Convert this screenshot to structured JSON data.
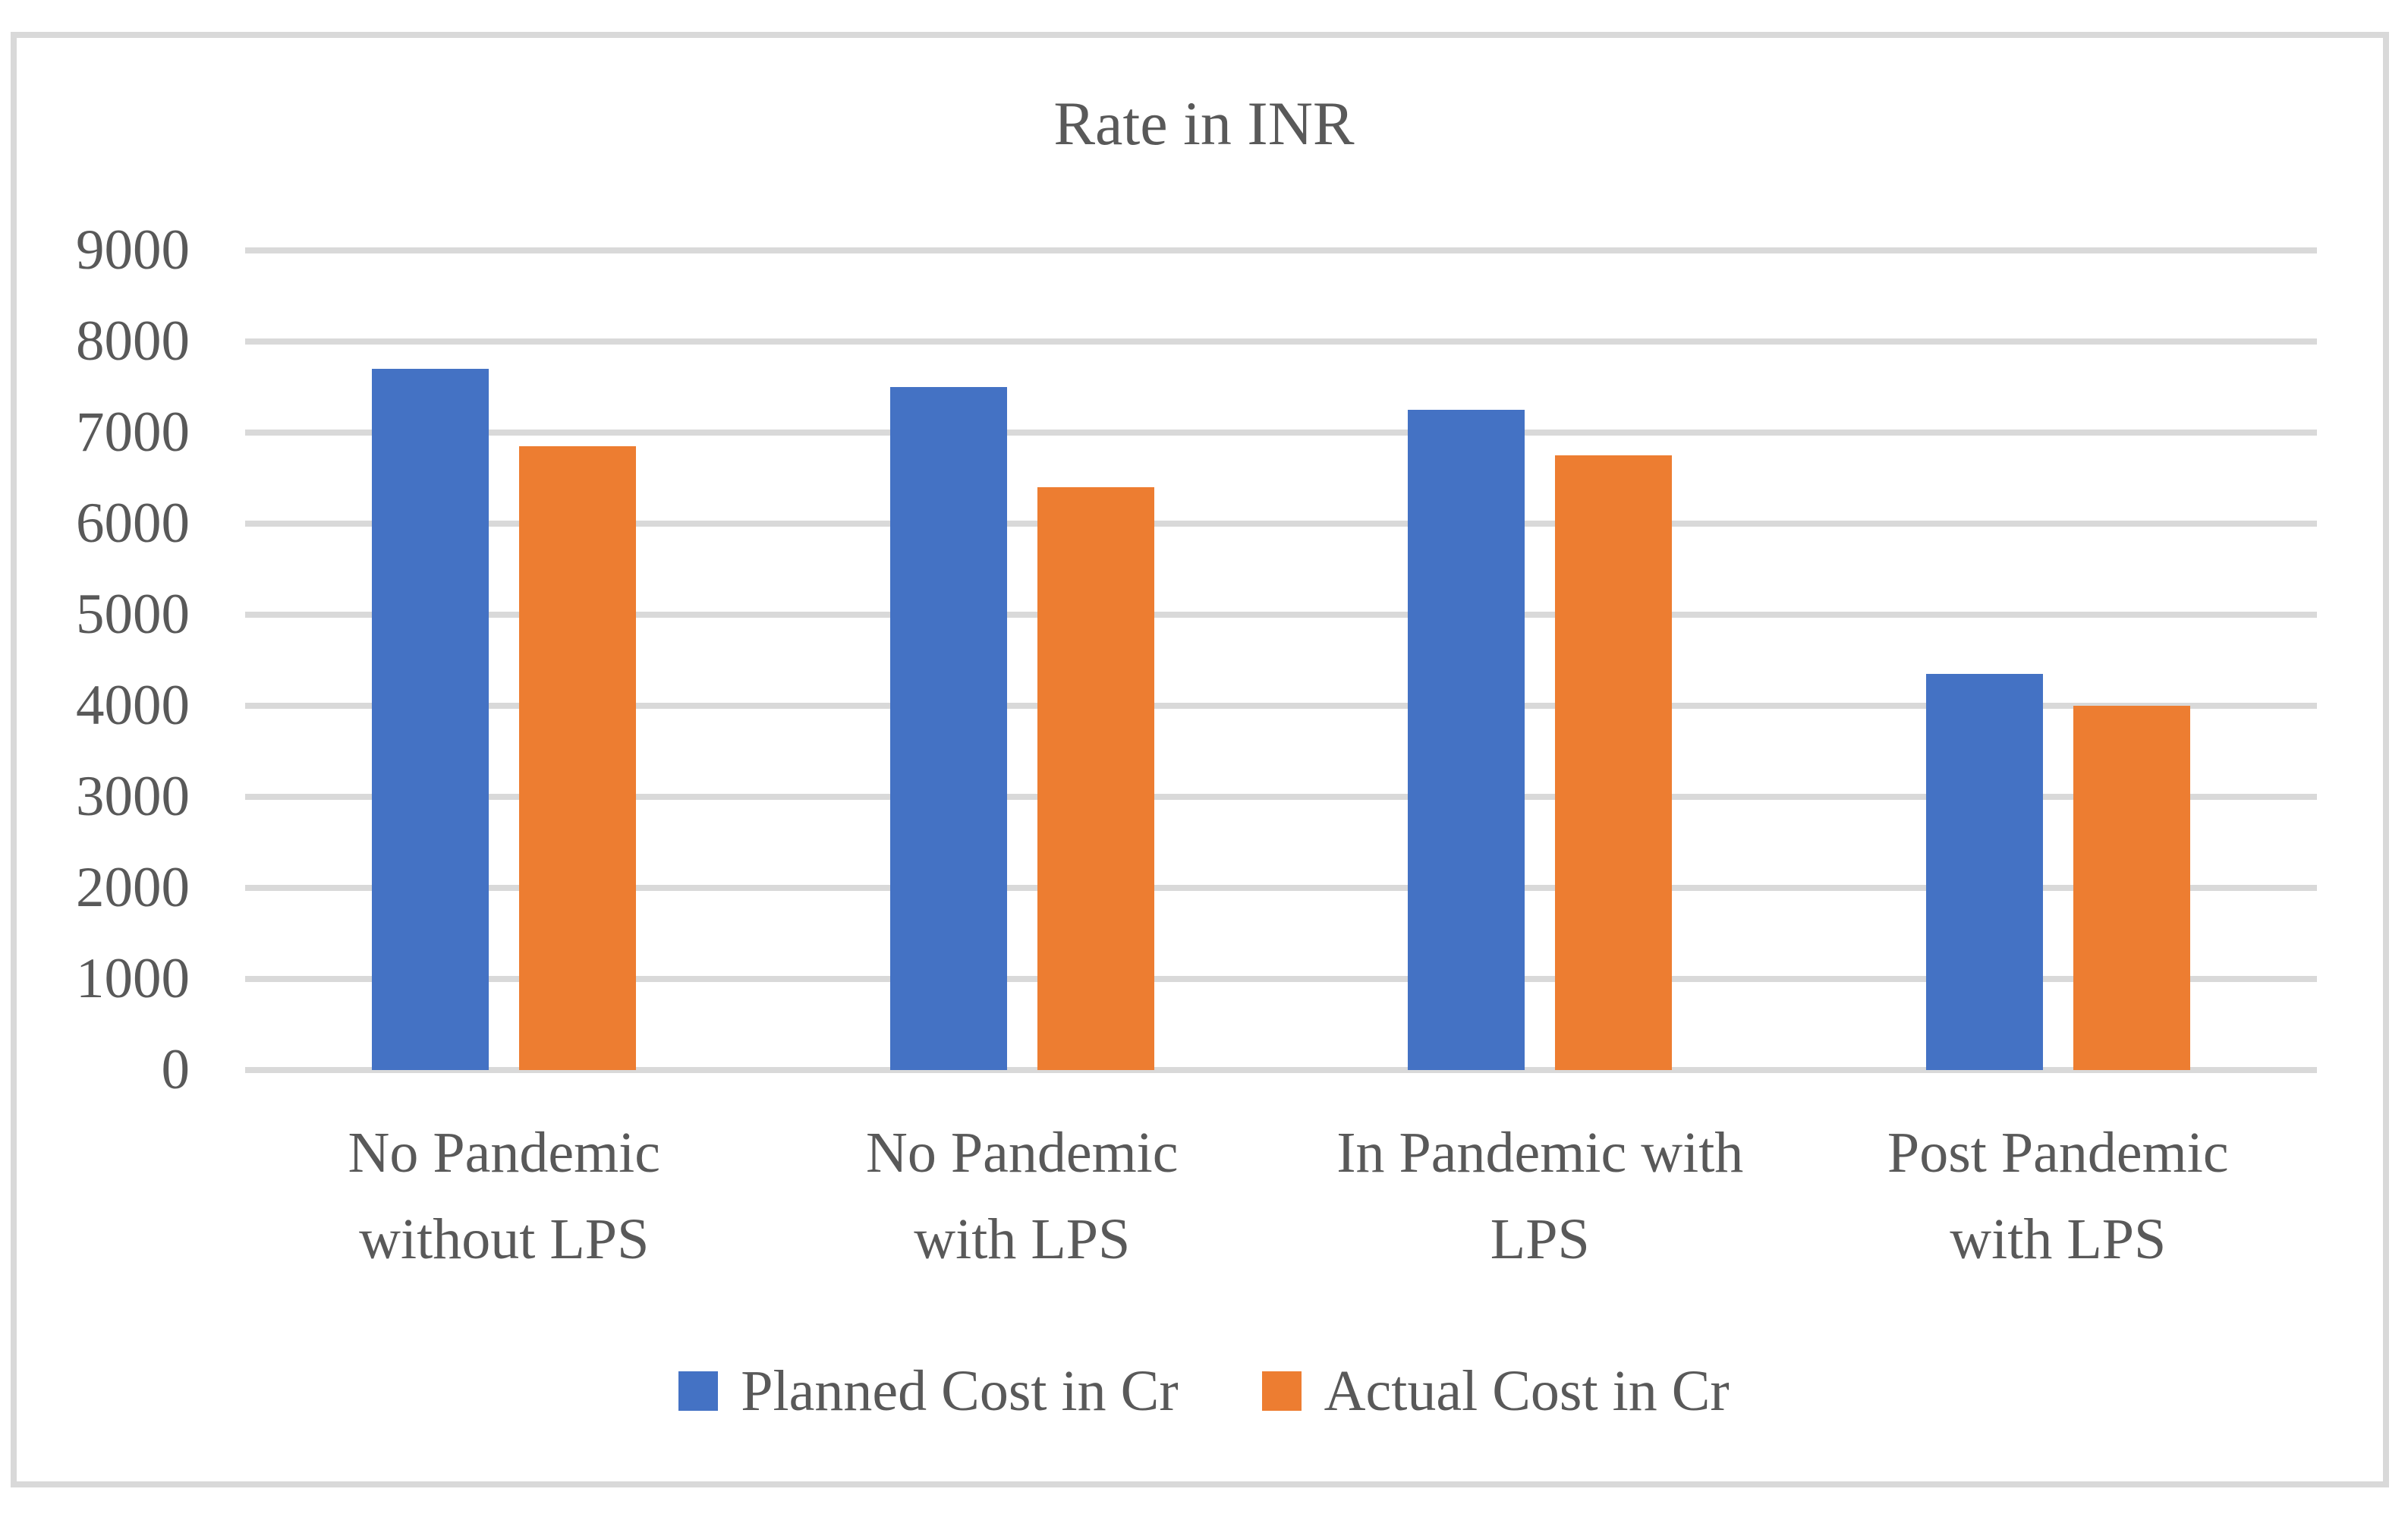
{
  "chart_data": {
    "type": "bar",
    "title": "Rate in INR",
    "categories": [
      [
        "No Pandemic",
        "without LPS"
      ],
      [
        "No Pandemic",
        "with LPS"
      ],
      [
        "In Pandemic with",
        "LPS"
      ],
      [
        "Post Pandemic",
        "with LPS"
      ]
    ],
    "series": [
      {
        "name": "Planned Cost in Cr",
        "color": "#4472C4",
        "values": [
          7700,
          7500,
          7250,
          4350
        ]
      },
      {
        "name": "Actual Cost in Cr",
        "color": "#ED7D31",
        "values": [
          6850,
          6400,
          6750,
          4000
        ]
      }
    ],
    "xlabel": "",
    "ylabel": "",
    "y_axis": {
      "min": 0,
      "max": 9000,
      "tick_interval": 1000,
      "ticks": [
        0,
        1000,
        2000,
        3000,
        4000,
        5000,
        6000,
        7000,
        8000,
        9000
      ]
    },
    "grid": true,
    "legend_position": "bottom",
    "colors": {
      "text": "#595959",
      "gridline": "#D9D9D9",
      "figure_border": "#D9D9D9",
      "background": "#FFFFFF"
    }
  }
}
